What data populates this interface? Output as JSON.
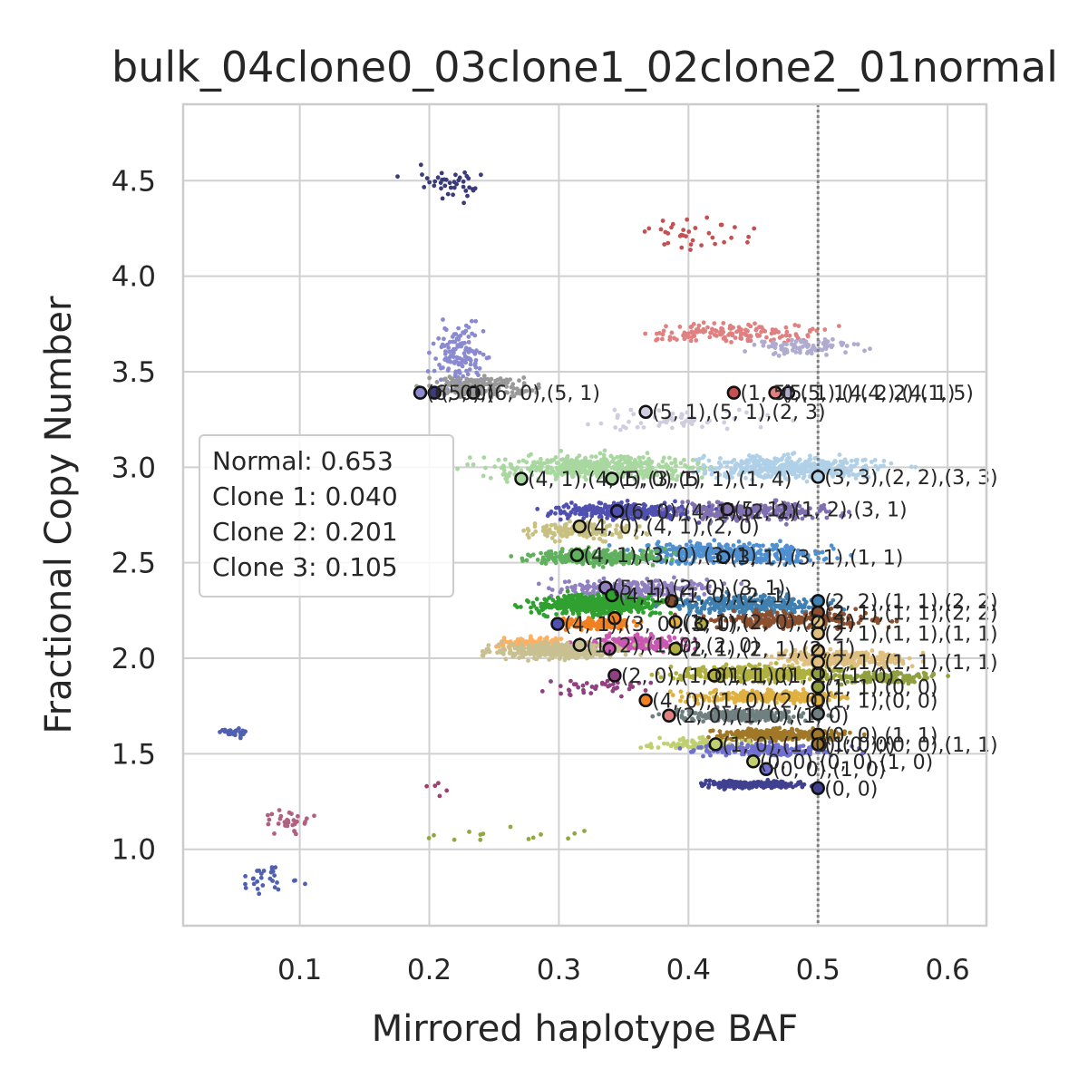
{
  "chart_data": {
    "type": "scatter",
    "title": "bulk_04clone0_03clone1_02clone2_01normal",
    "xlabel": "Mirrored haplotype BAF",
    "ylabel": "Fractional Copy Number",
    "xlim": [
      0.01,
      0.63
    ],
    "ylim": [
      0.6,
      4.9
    ],
    "xticks": [
      0.1,
      0.2,
      0.3,
      0.4,
      0.5,
      0.6
    ],
    "xtick_labels": [
      "0.1",
      "0.2",
      "0.3",
      "0.4",
      "0.5",
      "0.6"
    ],
    "yticks": [
      1.0,
      1.5,
      2.0,
      2.5,
      3.0,
      3.5,
      4.0,
      4.5
    ],
    "ytick_labels": [
      "1.0",
      "1.5",
      "2.0",
      "2.5",
      "3.0",
      "3.5",
      "4.0",
      "4.5"
    ],
    "grid": true,
    "reference_line": {
      "x": 0.5,
      "style": "dotted",
      "color": "#808080"
    },
    "legend": {
      "placement": "left",
      "entries": [
        "Normal: 0.653",
        "Clone 1: 0.040",
        "Clone 2: 0.201",
        "Clone 3: 0.105"
      ]
    },
    "clusters": [
      {
        "color": "#3b3b7a",
        "center": [
          0.215,
          4.48
        ],
        "spread": [
          0.03,
          0.09
        ],
        "n": 40
      },
      {
        "color": "#c45050",
        "center": [
          0.405,
          4.22
        ],
        "spread": [
          0.04,
          0.08
        ],
        "n": 35
      },
      {
        "color": "#8a8ad0",
        "center": [
          0.225,
          3.58
        ],
        "spread": [
          0.02,
          0.15
        ],
        "n": 130
      },
      {
        "color": "#e08080",
        "center": [
          0.43,
          3.7
        ],
        "spread": [
          0.07,
          0.05
        ],
        "n": 150
      },
      {
        "color": "#b0acd0",
        "center": [
          0.49,
          3.63
        ],
        "spread": [
          0.04,
          0.04
        ],
        "n": 90
      },
      {
        "color": "#999999",
        "center": [
          0.24,
          3.42
        ],
        "spread": [
          0.04,
          0.06
        ],
        "n": 170
      },
      {
        "color": "#d0cde0",
        "center": [
          0.39,
          3.25
        ],
        "spread": [
          0.07,
          0.06
        ],
        "n": 60
      },
      {
        "color": "#a8d8a0",
        "center": [
          0.33,
          3.0
        ],
        "spread": [
          0.08,
          0.06
        ],
        "n": 450
      },
      {
        "color": "#b0d0e8",
        "center": [
          0.48,
          3.0
        ],
        "spread": [
          0.07,
          0.06
        ],
        "n": 400
      },
      {
        "color": "#5050b0",
        "center": [
          0.35,
          2.77
        ],
        "spread": [
          0.05,
          0.04
        ],
        "n": 300
      },
      {
        "color": "#8070b0",
        "center": [
          0.45,
          2.77
        ],
        "spread": [
          0.06,
          0.05
        ],
        "n": 250
      },
      {
        "color": "#c8c080",
        "center": [
          0.32,
          2.67
        ],
        "spread": [
          0.04,
          0.05
        ],
        "n": 150
      },
      {
        "color": "#5090d0",
        "center": [
          0.43,
          2.55
        ],
        "spread": [
          0.07,
          0.05
        ],
        "n": 400
      },
      {
        "color": "#60b060",
        "center": [
          0.33,
          2.53
        ],
        "spread": [
          0.05,
          0.04
        ],
        "n": 300
      },
      {
        "color": "#9080c0",
        "center": [
          0.36,
          2.36
        ],
        "spread": [
          0.06,
          0.05
        ],
        "n": 250
      },
      {
        "color": "#30a030",
        "center": [
          0.33,
          2.28
        ],
        "spread": [
          0.05,
          0.05
        ],
        "n": 500
      },
      {
        "color": "#4080b0",
        "center": [
          0.45,
          2.28
        ],
        "spread": [
          0.06,
          0.05
        ],
        "n": 300
      },
      {
        "color": "#f08020",
        "center": [
          0.33,
          2.18
        ],
        "spread": [
          0.03,
          0.03
        ],
        "n": 150
      },
      {
        "color": "#8b5030",
        "center": [
          0.48,
          2.2
        ],
        "spread": [
          0.06,
          0.04
        ],
        "n": 250
      },
      {
        "color": "#ffb060",
        "center": [
          0.28,
          2.08
        ],
        "spread": [
          0.03,
          0.03
        ],
        "n": 120
      },
      {
        "color": "#c858b0",
        "center": [
          0.36,
          2.08
        ],
        "spread": [
          0.04,
          0.04
        ],
        "n": 200
      },
      {
        "color": "#c8c090",
        "center": [
          0.3,
          2.04
        ],
        "spread": [
          0.05,
          0.04
        ],
        "n": 350
      },
      {
        "color": "#e0c080",
        "center": [
          0.52,
          2.0
        ],
        "spread": [
          0.05,
          0.04
        ],
        "n": 300
      },
      {
        "color": "#b0b040",
        "center": [
          0.45,
          1.92
        ],
        "spread": [
          0.06,
          0.04
        ],
        "n": 350
      },
      {
        "color": "#90a040",
        "center": [
          0.55,
          1.9
        ],
        "spread": [
          0.04,
          0.03
        ],
        "n": 150
      },
      {
        "color": "#904080",
        "center": [
          0.33,
          1.85
        ],
        "spread": [
          0.04,
          0.04
        ],
        "n": 40
      },
      {
        "color": "#e0b040",
        "center": [
          0.46,
          1.8
        ],
        "spread": [
          0.06,
          0.03
        ],
        "n": 300
      },
      {
        "color": "#708080",
        "center": [
          0.44,
          1.7
        ],
        "spread": [
          0.05,
          0.03
        ],
        "n": 250
      },
      {
        "color": "#a07828",
        "center": [
          0.47,
          1.6
        ],
        "spread": [
          0.05,
          0.03
        ],
        "n": 300
      },
      {
        "color": "#c0d070",
        "center": [
          0.41,
          1.55
        ],
        "spread": [
          0.04,
          0.03
        ],
        "n": 100
      },
      {
        "color": "#7070d0",
        "center": [
          0.46,
          1.52
        ],
        "spread": [
          0.05,
          0.03
        ],
        "n": 200
      },
      {
        "color": "#404090",
        "center": [
          0.45,
          1.34
        ],
        "spread": [
          0.04,
          0.02
        ],
        "n": 250
      },
      {
        "color": "#5060b0",
        "center": [
          0.05,
          1.61
        ],
        "spread": [
          0.01,
          0.02
        ],
        "n": 35
      },
      {
        "color": "#b06080",
        "center": [
          0.09,
          1.15
        ],
        "spread": [
          0.02,
          0.06
        ],
        "n": 30
      },
      {
        "color": "#5060b0",
        "center": [
          0.08,
          0.85
        ],
        "spread": [
          0.02,
          0.07
        ],
        "n": 30
      },
      {
        "color": "#90a840",
        "center": [
          0.27,
          1.08
        ],
        "spread": [
          0.07,
          0.05
        ],
        "n": 14
      },
      {
        "color": "#a04070",
        "center": [
          0.2,
          1.35
        ],
        "spread": [
          0.02,
          0.06
        ],
        "n": 5
      }
    ],
    "markers": [
      {
        "x": 0.193,
        "y": 3.39,
        "fill": "#8a8ad0",
        "label": "(6, 0),(6, 0),(5, 1)"
      },
      {
        "x": 0.204,
        "y": 3.39,
        "fill": "#3b3b7a",
        "label": "(5, 0)"
      },
      {
        "x": 0.234,
        "y": 3.39,
        "fill": "#999999",
        "label": ""
      },
      {
        "x": 0.435,
        "y": 3.39,
        "fill": "#c45050",
        "label": "(1, 5),(5, 1),(4, 2),(1, 5)"
      },
      {
        "x": 0.467,
        "y": 3.39,
        "fill": "#e08080",
        "label": "(5, 1),(4, 2),(4, 1)"
      },
      {
        "x": 0.477,
        "y": 3.39,
        "fill": "#b0acd0",
        "label": ""
      },
      {
        "x": 0.367,
        "y": 3.29,
        "fill": "#d0cde0",
        "label": "(5, 1),(5, 1),(2, 3)"
      },
      {
        "x": 0.271,
        "y": 2.94,
        "fill": "#a8d8a0",
        "label": "(4, 1),(4, 1),(3, 1)"
      },
      {
        "x": 0.341,
        "y": 2.94,
        "fill": "#a8d8a0",
        "label": "(5, 0),(5, 1),(1, 4)"
      },
      {
        "x": 0.5,
        "y": 2.95,
        "fill": "#b0d0e8",
        "label": "(3, 3),(2, 2),(3, 3)"
      },
      {
        "x": 0.345,
        "y": 2.77,
        "fill": "#5050b0",
        "label": "(6, 0),(4, 1),(2, 2)"
      },
      {
        "x": 0.43,
        "y": 2.78,
        "fill": "#8070b0",
        "label": "(5, 1),(1, 2),(3, 1)"
      },
      {
        "x": 0.316,
        "y": 2.69,
        "fill": "#c8c080",
        "label": "(4, 0),(4, 1),(2, 0)"
      },
      {
        "x": 0.314,
        "y": 2.54,
        "fill": "#60b060",
        "label": "(4, 1),(3, 0),(3, 1)"
      },
      {
        "x": 0.427,
        "y": 2.53,
        "fill": "#5090d0",
        "label": "(3, 1),(3, 1),(1, 1)"
      },
      {
        "x": 0.336,
        "y": 2.37,
        "fill": "#9080c0",
        "label": "(5, 1),(2, 0),(3, 1)"
      },
      {
        "x": 0.341,
        "y": 2.33,
        "fill": "#30a030",
        "label": "(4, 1),(1, 0),(2, 1)"
      },
      {
        "x": 0.5,
        "y": 2.3,
        "fill": "#4080b0",
        "label": "(2, 2),(1, 1),(2, 2)"
      },
      {
        "x": 0.387,
        "y": 2.3,
        "fill": "#8b5030",
        "label": ""
      },
      {
        "x": 0.299,
        "y": 2.18,
        "fill": "#5050b0",
        "label": "(4, 1),(3, 0),(3, 0)"
      },
      {
        "x": 0.343,
        "y": 2.21,
        "fill": "#f08020",
        "label": ""
      },
      {
        "x": 0.39,
        "y": 2.19,
        "fill": "#e0b040",
        "label": "(1, 1),(2, 0),(2, 1)"
      },
      {
        "x": 0.41,
        "y": 2.18,
        "fill": "#b0b040",
        "label": ""
      },
      {
        "x": 0.5,
        "y": 2.24,
        "fill": "#8b5030",
        "label": "(2, 1),(1, 1),(2, 2)"
      },
      {
        "x": 0.5,
        "y": 2.19,
        "fill": "#e0c080",
        "label": ""
      },
      {
        "x": 0.5,
        "y": 2.13,
        "fill": "#e0c080",
        "label": "(2, 1),(1, 1),(1, 1)"
      },
      {
        "x": 0.316,
        "y": 2.07,
        "fill": "#c8c090",
        "label": "(1, 2),(1, 0),(2, 0)"
      },
      {
        "x": 0.339,
        "y": 2.05,
        "fill": "#c858b0",
        "label": ""
      },
      {
        "x": 0.39,
        "y": 2.05,
        "fill": "#b0b040",
        "label": "(2, 1),(2, 1),(2, 1)"
      },
      {
        "x": 0.5,
        "y": 2.04,
        "fill": "#e0c080",
        "label": ""
      },
      {
        "x": 0.5,
        "y": 1.98,
        "fill": "#e0c080",
        "label": "(2, 1),(1, 1),(1, 1)"
      },
      {
        "x": 0.343,
        "y": 1.91,
        "fill": "#904080",
        "label": "(2, 0),(1, 0),(1, 0)"
      },
      {
        "x": 0.42,
        "y": 1.91,
        "fill": "#b0b040",
        "label": "(1, 1),(1, 1),(1, 0)"
      },
      {
        "x": 0.5,
        "y": 1.92,
        "fill": "#90a040",
        "label": ""
      },
      {
        "x": 0.5,
        "y": 1.85,
        "fill": "#90a040",
        "label": "(1, 1),(0, 0)"
      },
      {
        "x": 0.367,
        "y": 1.78,
        "fill": "#f08020",
        "label": "(4, 0),(1, 0),(2, 0)"
      },
      {
        "x": 0.5,
        "y": 1.78,
        "fill": "#e0b040",
        "label": "(1, 1),(0, 0)"
      },
      {
        "x": 0.385,
        "y": 1.7,
        "fill": "#e08080",
        "label": "(2, 0),(1, 0),(1, 0)"
      },
      {
        "x": 0.5,
        "y": 1.71,
        "fill": "#708080",
        "label": ""
      },
      {
        "x": 0.5,
        "y": 1.6,
        "fill": "#a07828",
        "label": "(0, 0),(1, 1)"
      },
      {
        "x": 0.421,
        "y": 1.55,
        "fill": "#c0d070",
        "label": "(1, 0),(1, 0),(0, 0)"
      },
      {
        "x": 0.5,
        "y": 1.55,
        "fill": "#a07828",
        "label": "(1, 0),(0, 0),(1, 1)"
      },
      {
        "x": 0.45,
        "y": 1.46,
        "fill": "#c0d070",
        "label": "(0, 0),(0, 0),(1, 0)"
      },
      {
        "x": 0.46,
        "y": 1.42,
        "fill": "#7070d0",
        "label": "(0, 0),(1, 0)"
      },
      {
        "x": 0.5,
        "y": 1.32,
        "fill": "#404090",
        "label": "(0, 0)"
      }
    ]
  }
}
